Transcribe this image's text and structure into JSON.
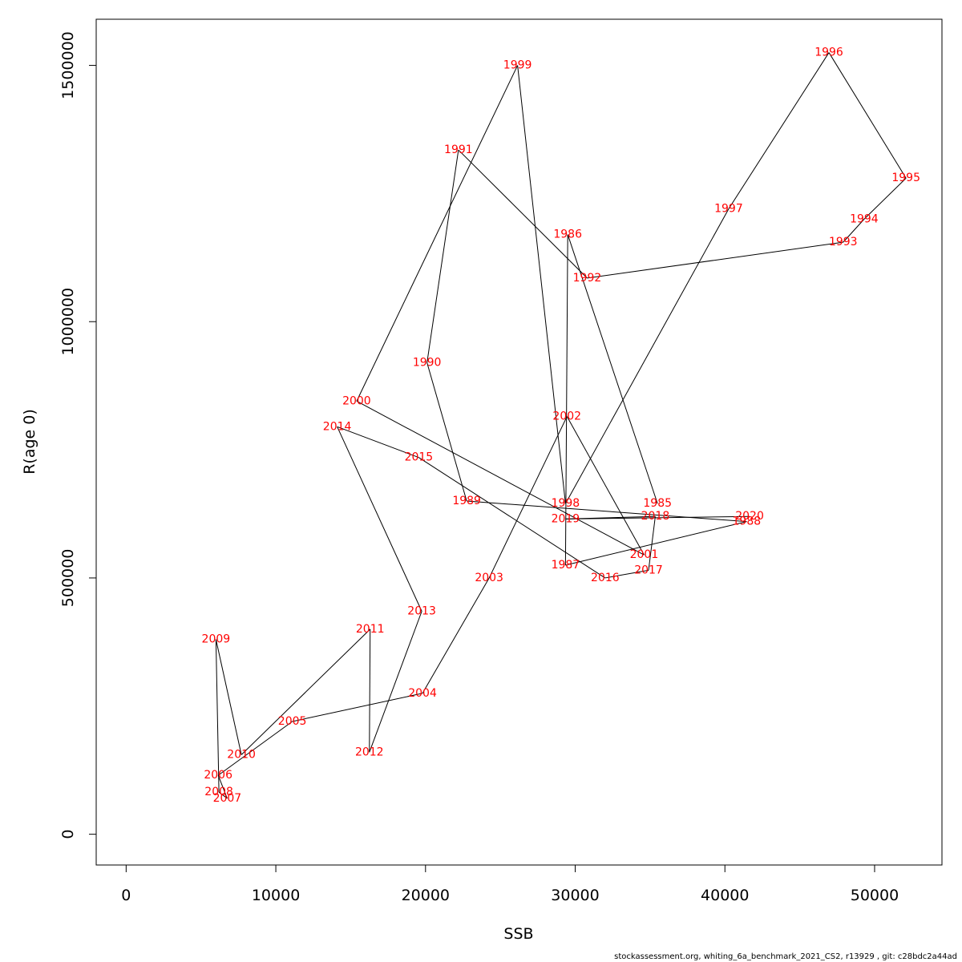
{
  "chart_data": {
    "type": "line",
    "xlabel": "SSB",
    "ylabel": "R(age 0)",
    "xlim": [
      -2000,
      54500
    ],
    "ylim": [
      -60000,
      1590000
    ],
    "xticks": [
      0,
      10000,
      20000,
      30000,
      40000,
      50000
    ],
    "ytick_values": [
      0,
      500000,
      1000000,
      1500000
    ],
    "yticks": [
      "0",
      "500000",
      "1000000",
      "1500000"
    ],
    "grid": false,
    "legend": "none",
    "line_color": "#000000",
    "label_color": "#ff0000",
    "series": [
      {
        "points": [
          {
            "year": "1985",
            "ssb": 35500,
            "rec": 645000
          },
          {
            "year": "1986",
            "ssb": 29500,
            "rec": 1170000
          },
          {
            "year": "1987",
            "ssb": 29350,
            "rec": 525000
          },
          {
            "year": "1988",
            "ssb": 41450,
            "rec": 610000
          },
          {
            "year": "1989",
            "ssb": 22750,
            "rec": 650000
          },
          {
            "year": "1990",
            "ssb": 20100,
            "rec": 920000
          },
          {
            "year": "1991",
            "ssb": 22200,
            "rec": 1335000
          },
          {
            "year": "1992",
            "ssb": 30800,
            "rec": 1085000
          },
          {
            "year": "1993",
            "ssb": 47900,
            "rec": 1155000
          },
          {
            "year": "1994",
            "ssb": 49300,
            "rec": 1200000
          },
          {
            "year": "1995",
            "ssb": 52100,
            "rec": 1280000
          },
          {
            "year": "1996",
            "ssb": 46950,
            "rec": 1525000
          },
          {
            "year": "1997",
            "ssb": 40250,
            "rec": 1220000
          },
          {
            "year": "1998",
            "ssb": 29350,
            "rec": 645000
          },
          {
            "year": "1999",
            "ssb": 26150,
            "rec": 1500000
          },
          {
            "year": "2000",
            "ssb": 15400,
            "rec": 845000
          },
          {
            "year": "2001",
            "ssb": 34600,
            "rec": 545000
          },
          {
            "year": "2002",
            "ssb": 29450,
            "rec": 815000
          },
          {
            "year": "2003",
            "ssb": 24250,
            "rec": 500000
          },
          {
            "year": "2004",
            "ssb": 19800,
            "rec": 275000
          },
          {
            "year": "2005",
            "ssb": 11100,
            "rec": 220000
          },
          {
            "year": "2006",
            "ssb": 6150,
            "rec": 115000
          },
          {
            "year": "2007",
            "ssb": 6750,
            "rec": 70000
          },
          {
            "year": "2008",
            "ssb": 6200,
            "rec": 82000
          },
          {
            "year": "2009",
            "ssb": 6000,
            "rec": 380000
          },
          {
            "year": "2010",
            "ssb": 7700,
            "rec": 155000
          },
          {
            "year": "2011",
            "ssb": 16300,
            "rec": 400000
          },
          {
            "year": "2012",
            "ssb": 16250,
            "rec": 160000
          },
          {
            "year": "2013",
            "ssb": 19750,
            "rec": 435000
          },
          {
            "year": "2014",
            "ssb": 14100,
            "rec": 795000
          },
          {
            "year": "2015",
            "ssb": 19550,
            "rec": 735000
          },
          {
            "year": "2016",
            "ssb": 32000,
            "rec": 500000
          },
          {
            "year": "2017",
            "ssb": 34900,
            "rec": 515000
          },
          {
            "year": "2018",
            "ssb": 35350,
            "rec": 620000
          },
          {
            "year": "2019",
            "ssb": 29350,
            "rec": 615000
          },
          {
            "year": "2020",
            "ssb": 41650,
            "rec": 620000
          }
        ]
      }
    ]
  },
  "footer": "stockassessment.org, whiting_6a_benchmark_2021_CS2, r13929 , git: c28bdc2a44ad"
}
